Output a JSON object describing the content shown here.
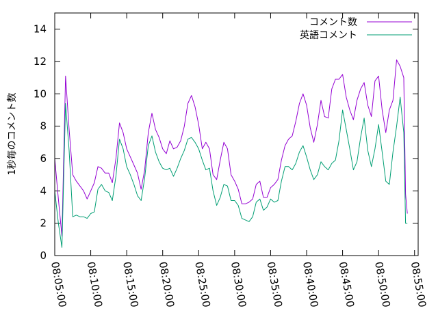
{
  "chart_data": {
    "type": "line",
    "title": "",
    "xlabel": "",
    "ylabel": "1秒毎のコメント数",
    "ylim": [
      0,
      15
    ],
    "y_ticks": [
      0,
      2,
      4,
      6,
      8,
      10,
      12,
      14
    ],
    "x_time_range": [
      "08:05:00",
      "08:55:30"
    ],
    "x_ticks": [
      "08:05:00",
      "08:10:00",
      "08:15:00",
      "08:20:00",
      "08:25:00",
      "08:30:00",
      "08:35:00",
      "08:40:00",
      "08:45:00",
      "08:50:00",
      "08:55:00"
    ],
    "grid": false,
    "legend_position": "top-right",
    "series": [
      {
        "name": "コメント数",
        "color": "#9400D3",
        "points": [
          [
            "08:05:00",
            6.0
          ],
          [
            "08:05:30",
            3.5
          ],
          [
            "08:06:00",
            1.2
          ],
          [
            "08:06:30",
            11.1
          ],
          [
            "08:07:00",
            7.8
          ],
          [
            "08:07:30",
            5.0
          ],
          [
            "08:08:00",
            4.6
          ],
          [
            "08:08:30",
            4.3
          ],
          [
            "08:09:00",
            4.0
          ],
          [
            "08:09:30",
            3.5
          ],
          [
            "08:10:00",
            4.0
          ],
          [
            "08:10:30",
            4.5
          ],
          [
            "08:11:00",
            5.5
          ],
          [
            "08:11:30",
            5.4
          ],
          [
            "08:12:00",
            5.1
          ],
          [
            "08:12:30",
            5.1
          ],
          [
            "08:13:00",
            4.5
          ],
          [
            "08:13:30",
            6.0
          ],
          [
            "08:14:00",
            8.2
          ],
          [
            "08:14:30",
            7.6
          ],
          [
            "08:15:00",
            6.6
          ],
          [
            "08:15:30",
            6.1
          ],
          [
            "08:16:00",
            5.6
          ],
          [
            "08:16:30",
            5.1
          ],
          [
            "08:17:00",
            4.1
          ],
          [
            "08:17:30",
            5.3
          ],
          [
            "08:18:00",
            7.6
          ],
          [
            "08:18:30",
            8.8
          ],
          [
            "08:19:00",
            7.8
          ],
          [
            "08:19:30",
            7.3
          ],
          [
            "08:20:00",
            6.6
          ],
          [
            "08:20:30",
            6.3
          ],
          [
            "08:21:00",
            7.1
          ],
          [
            "08:21:30",
            6.6
          ],
          [
            "08:22:00",
            6.7
          ],
          [
            "08:22:30",
            7.1
          ],
          [
            "08:23:00",
            8.0
          ],
          [
            "08:23:30",
            9.4
          ],
          [
            "08:24:00",
            9.9
          ],
          [
            "08:24:30",
            9.2
          ],
          [
            "08:25:00",
            8.1
          ],
          [
            "08:25:30",
            6.6
          ],
          [
            "08:26:00",
            7.0
          ],
          [
            "08:26:30",
            6.6
          ],
          [
            "08:27:00",
            5.0
          ],
          [
            "08:27:30",
            4.7
          ],
          [
            "08:28:00",
            5.9
          ],
          [
            "08:28:30",
            7.0
          ],
          [
            "08:29:00",
            6.6
          ],
          [
            "08:29:30",
            5.0
          ],
          [
            "08:30:00",
            4.6
          ],
          [
            "08:30:30",
            4.1
          ],
          [
            "08:31:00",
            3.2
          ],
          [
            "08:31:30",
            3.2
          ],
          [
            "08:32:00",
            3.3
          ],
          [
            "08:32:30",
            3.5
          ],
          [
            "08:33:00",
            4.4
          ],
          [
            "08:33:30",
            4.6
          ],
          [
            "08:34:00",
            3.6
          ],
          [
            "08:34:30",
            3.6
          ],
          [
            "08:35:00",
            4.2
          ],
          [
            "08:35:30",
            4.4
          ],
          [
            "08:36:00",
            4.7
          ],
          [
            "08:36:30",
            5.9
          ],
          [
            "08:37:00",
            6.8
          ],
          [
            "08:37:30",
            7.2
          ],
          [
            "08:38:00",
            7.4
          ],
          [
            "08:38:30",
            8.3
          ],
          [
            "08:39:00",
            9.4
          ],
          [
            "08:39:30",
            10.0
          ],
          [
            "08:40:00",
            9.3
          ],
          [
            "08:40:30",
            7.9
          ],
          [
            "08:41:00",
            7.0
          ],
          [
            "08:41:30",
            8.1
          ],
          [
            "08:42:00",
            9.6
          ],
          [
            "08:42:30",
            8.6
          ],
          [
            "08:43:00",
            8.5
          ],
          [
            "08:43:30",
            10.3
          ],
          [
            "08:44:00",
            10.9
          ],
          [
            "08:44:30",
            10.9
          ],
          [
            "08:45:00",
            11.2
          ],
          [
            "08:45:30",
            9.8
          ],
          [
            "08:46:00",
            9.0
          ],
          [
            "08:46:30",
            8.4
          ],
          [
            "08:47:00",
            9.6
          ],
          [
            "08:47:30",
            10.3
          ],
          [
            "08:48:00",
            10.7
          ],
          [
            "08:48:30",
            9.3
          ],
          [
            "08:49:00",
            8.6
          ],
          [
            "08:49:30",
            10.8
          ],
          [
            "08:50:00",
            11.1
          ],
          [
            "08:50:30",
            9.0
          ],
          [
            "08:51:00",
            7.6
          ],
          [
            "08:51:30",
            9.0
          ],
          [
            "08:52:00",
            9.6
          ],
          [
            "08:52:30",
            12.1
          ],
          [
            "08:53:00",
            11.7
          ],
          [
            "08:53:30",
            11.0
          ],
          [
            "08:53:45",
            3.8
          ],
          [
            "08:54:00",
            2.6
          ]
        ]
      },
      {
        "name": "英語コメント",
        "color": "#009E73",
        "points": [
          [
            "08:05:00",
            4.0
          ],
          [
            "08:05:30",
            2.0
          ],
          [
            "08:06:00",
            0.5
          ],
          [
            "08:06:30",
            9.4
          ],
          [
            "08:07:00",
            6.5
          ],
          [
            "08:07:30",
            2.4
          ],
          [
            "08:08:00",
            2.5
          ],
          [
            "08:08:30",
            2.4
          ],
          [
            "08:09:00",
            2.4
          ],
          [
            "08:09:30",
            2.3
          ],
          [
            "08:10:00",
            2.6
          ],
          [
            "08:10:30",
            2.7
          ],
          [
            "08:11:00",
            4.1
          ],
          [
            "08:11:30",
            4.4
          ],
          [
            "08:12:00",
            4.0
          ],
          [
            "08:12:30",
            3.9
          ],
          [
            "08:13:00",
            3.4
          ],
          [
            "08:13:30",
            4.9
          ],
          [
            "08:14:00",
            7.2
          ],
          [
            "08:14:30",
            6.6
          ],
          [
            "08:15:00",
            5.5
          ],
          [
            "08:15:30",
            5.0
          ],
          [
            "08:16:00",
            4.4
          ],
          [
            "08:16:30",
            3.7
          ],
          [
            "08:17:00",
            3.4
          ],
          [
            "08:17:30",
            4.8
          ],
          [
            "08:18:00",
            6.8
          ],
          [
            "08:18:30",
            7.4
          ],
          [
            "08:19:00",
            6.4
          ],
          [
            "08:19:30",
            5.8
          ],
          [
            "08:20:00",
            5.4
          ],
          [
            "08:20:30",
            5.3
          ],
          [
            "08:21:00",
            5.4
          ],
          [
            "08:21:30",
            4.9
          ],
          [
            "08:22:00",
            5.4
          ],
          [
            "08:22:30",
            6.0
          ],
          [
            "08:23:00",
            6.5
          ],
          [
            "08:23:30",
            7.2
          ],
          [
            "08:24:00",
            7.3
          ],
          [
            "08:24:30",
            7.0
          ],
          [
            "08:25:00",
            6.6
          ],
          [
            "08:25:30",
            5.9
          ],
          [
            "08:26:00",
            5.3
          ],
          [
            "08:26:30",
            5.4
          ],
          [
            "08:27:00",
            4.0
          ],
          [
            "08:27:30",
            3.1
          ],
          [
            "08:28:00",
            3.6
          ],
          [
            "08:28:30",
            4.4
          ],
          [
            "08:29:00",
            4.3
          ],
          [
            "08:29:30",
            3.4
          ],
          [
            "08:30:00",
            3.4
          ],
          [
            "08:30:30",
            3.1
          ],
          [
            "08:31:00",
            2.3
          ],
          [
            "08:31:30",
            2.2
          ],
          [
            "08:32:00",
            2.1
          ],
          [
            "08:32:30",
            2.4
          ],
          [
            "08:33:00",
            3.3
          ],
          [
            "08:33:30",
            3.5
          ],
          [
            "08:34:00",
            2.8
          ],
          [
            "08:34:30",
            3.0
          ],
          [
            "08:35:00",
            3.5
          ],
          [
            "08:35:30",
            3.3
          ],
          [
            "08:36:00",
            3.4
          ],
          [
            "08:36:30",
            4.6
          ],
          [
            "08:37:00",
            5.5
          ],
          [
            "08:37:30",
            5.5
          ],
          [
            "08:38:00",
            5.3
          ],
          [
            "08:38:30",
            5.7
          ],
          [
            "08:39:00",
            6.4
          ],
          [
            "08:39:30",
            6.8
          ],
          [
            "08:40:00",
            6.1
          ],
          [
            "08:40:30",
            5.3
          ],
          [
            "08:41:00",
            4.7
          ],
          [
            "08:41:30",
            5.0
          ],
          [
            "08:42:00",
            5.8
          ],
          [
            "08:42:30",
            5.5
          ],
          [
            "08:43:00",
            5.3
          ],
          [
            "08:43:30",
            5.7
          ],
          [
            "08:44:00",
            5.9
          ],
          [
            "08:44:30",
            7.1
          ],
          [
            "08:45:00",
            9.0
          ],
          [
            "08:45:30",
            7.8
          ],
          [
            "08:46:00",
            6.6
          ],
          [
            "08:46:30",
            5.3
          ],
          [
            "08:47:00",
            5.8
          ],
          [
            "08:47:30",
            7.3
          ],
          [
            "08:48:00",
            8.5
          ],
          [
            "08:48:30",
            6.5
          ],
          [
            "08:49:00",
            5.5
          ],
          [
            "08:49:30",
            6.6
          ],
          [
            "08:50:00",
            8.1
          ],
          [
            "08:50:30",
            6.4
          ],
          [
            "08:51:00",
            4.6
          ],
          [
            "08:51:30",
            4.4
          ],
          [
            "08:52:00",
            6.4
          ],
          [
            "08:52:30",
            8.0
          ],
          [
            "08:53:00",
            9.8
          ],
          [
            "08:53:30",
            7.6
          ],
          [
            "08:53:45",
            2.0
          ],
          [
            "08:54:00",
            2.0
          ]
        ]
      }
    ]
  }
}
